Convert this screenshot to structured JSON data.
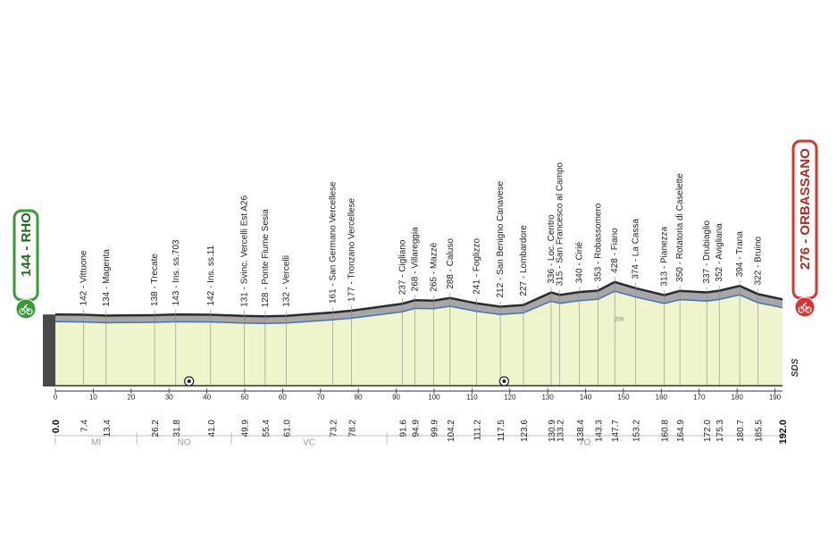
{
  "chart_data": {
    "type": "area",
    "title": "",
    "xlabel": "",
    "ylabel": "",
    "xlim": [
      0,
      192
    ],
    "ylim": [
      0,
      500
    ],
    "start": {
      "label": "144 - RHO",
      "km": 0.0,
      "km_label": "0.0",
      "altitude": 144,
      "color": "#3a9a3a"
    },
    "finish": {
      "label": "276 - ORBASSANO",
      "km": 192.0,
      "km_label": "192.0",
      "altitude": 276,
      "color": "#d6362f"
    },
    "fill_color": "#eef5cc",
    "profile_color": "#a7a7aa",
    "route_color": "#4472b5",
    "x_ticks": [
      0,
      10,
      20,
      30,
      40,
      50,
      60,
      70,
      80,
      90,
      100,
      110,
      120,
      130,
      140,
      150,
      160,
      170,
      180,
      190
    ],
    "altitude_axis_label": "200",
    "altitude_axis_value": 200,
    "logo": "SDS",
    "sprint_km": [
      35.3,
      118.5
    ],
    "waypoints": [
      {
        "km": 7.4,
        "km_label": "7.4",
        "label": "142 - Vittuone",
        "altitude": 142
      },
      {
        "km": 13.4,
        "km_label": "13.4",
        "label": "134 - Magenta",
        "altitude": 134
      },
      {
        "km": 26.2,
        "km_label": "26.2",
        "label": "138 - Trecate",
        "altitude": 138
      },
      {
        "km": 31.8,
        "km_label": "31.8",
        "label": "143 - Ins. ss.703",
        "altitude": 143
      },
      {
        "km": 41.0,
        "km_label": "41.0",
        "label": "142 - Ins. ss.11",
        "altitude": 142
      },
      {
        "km": 49.9,
        "km_label": "49.9",
        "label": "131 - Svinc. Vercelli Est A26",
        "altitude": 131
      },
      {
        "km": 55.4,
        "km_label": "55.4",
        "label": "128 - Ponte Fiume Sesia",
        "altitude": 128
      },
      {
        "km": 61.0,
        "km_label": "61.0",
        "label": "132 - Vercelli",
        "altitude": 132
      },
      {
        "km": 73.2,
        "km_label": "73.2",
        "label": "161 - San Germano Vercellese",
        "altitude": 161
      },
      {
        "km": 78.2,
        "km_label": "78.2",
        "label": "177 - Tronzano Vercellese",
        "altitude": 177
      },
      {
        "km": 91.6,
        "km_label": "91.6",
        "label": "237 - Cigliano",
        "altitude": 237
      },
      {
        "km": 94.9,
        "km_label": "94.9",
        "label": "268 - Villareggia",
        "altitude": 268
      },
      {
        "km": 99.9,
        "km_label": "99.9",
        "label": "265 - Mazzè",
        "altitude": 265
      },
      {
        "km": 104.2,
        "km_label": "104.2",
        "label": "288 - Caluso",
        "altitude": 288
      },
      {
        "km": 111.2,
        "km_label": "111.2",
        "label": "241 - Foglizzo",
        "altitude": 241
      },
      {
        "km": 117.5,
        "km_label": "117.5",
        "label": "212 - San Benigno Canavese",
        "altitude": 212
      },
      {
        "km": 123.6,
        "km_label": "123.6",
        "label": "227 - Lombardore",
        "altitude": 227
      },
      {
        "km": 130.9,
        "km_label": "130.9",
        "label": "336 - Loc. Centro",
        "altitude": 336
      },
      {
        "km": 133.2,
        "km_label": "133.2",
        "label": "315 - San Francesco al Campo",
        "altitude": 315
      },
      {
        "km": 138.4,
        "km_label": "138.4",
        "label": "340 - Cirié",
        "altitude": 340
      },
      {
        "km": 143.3,
        "km_label": "143.3",
        "label": "353 - Robassomero",
        "altitude": 353
      },
      {
        "km": 147.7,
        "km_label": "147.7",
        "label": "428 - Fiano",
        "altitude": 428
      },
      {
        "km": 153.2,
        "km_label": "153.2",
        "label": "374 - La Cassa",
        "altitude": 374
      },
      {
        "km": 160.8,
        "km_label": "160.8",
        "label": "313 - Pianezza",
        "altitude": 313
      },
      {
        "km": 164.9,
        "km_label": "164.9",
        "label": "350 - Rotatoria di Caselette",
        "altitude": 350
      },
      {
        "km": 172.0,
        "km_label": "172.0",
        "label": "337 - Drubiaglio",
        "altitude": 337
      },
      {
        "km": 175.3,
        "km_label": "175.3",
        "label": "352 - Avigliana",
        "altitude": 352
      },
      {
        "km": 180.7,
        "km_label": "180.7",
        "label": "394 - Trana",
        "altitude": 394
      },
      {
        "km": 185.5,
        "km_label": "185.5",
        "label": "322 - Bruino",
        "altitude": 322
      }
    ],
    "regions": [
      {
        "code": "MI",
        "from_km": 0,
        "to_km": 21.5
      },
      {
        "code": "NO",
        "from_km": 21.5,
        "to_km": 46.5
      },
      {
        "code": "VC",
        "from_km": 46.5,
        "to_km": 87.5
      },
      {
        "code": "TO",
        "from_km": 87.5,
        "to_km": 192
      }
    ]
  }
}
